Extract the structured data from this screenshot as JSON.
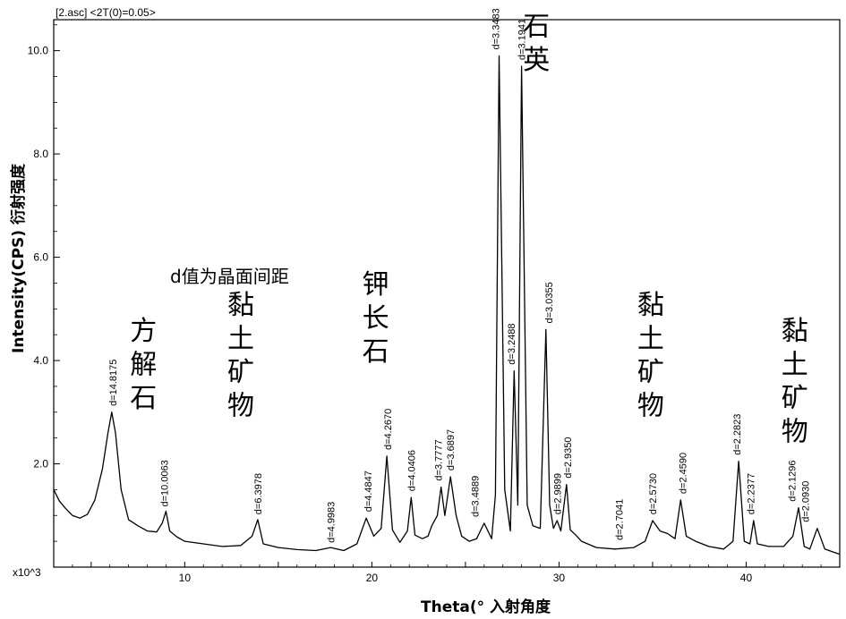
{
  "header": "[2.asc] <2T(0)=0.05>",
  "chart_data": {
    "type": "line",
    "xlabel": "Theta(°  入射角度",
    "ylabel": "Intensity(CPS) 衍射强度",
    "y_unit": "x10^3",
    "xlim": [
      3,
      45
    ],
    "ylim": [
      0,
      10.6
    ],
    "x_ticks": [
      "10",
      "20",
      "30",
      "40"
    ],
    "y_ticks": [
      "2.0",
      "4.0",
      "6.0",
      "8.0",
      "10.0"
    ],
    "note": "d值为晶面间距",
    "series": [
      {
        "x": [
          3.0,
          3.3,
          3.6,
          4.0,
          4.4,
          4.8,
          5.2,
          5.6,
          5.9,
          6.1,
          6.3,
          6.6,
          7.0,
          7.5,
          8.0,
          8.5,
          8.8,
          9.0,
          9.2,
          9.6,
          10.0,
          11.0,
          12.0,
          13.0,
          13.6,
          13.9,
          14.2,
          15.0,
          16.0,
          17.0,
          17.8,
          18.5,
          19.2,
          19.7,
          20.1,
          20.5,
          20.8,
          21.1,
          21.5,
          21.9,
          22.1,
          22.3,
          22.7,
          23.0,
          23.2,
          23.5,
          23.7,
          23.9,
          24.2,
          24.5,
          24.8,
          25.2,
          25.6,
          26.0,
          26.4,
          26.6,
          26.8,
          27.1,
          27.4,
          27.6,
          27.8,
          28.0,
          28.3,
          28.6,
          29.0,
          29.3,
          29.5,
          29.7,
          29.9,
          30.1,
          30.4,
          30.6,
          30.9,
          31.2,
          32.0,
          33.0,
          34.0,
          34.6,
          35.0,
          35.4,
          35.8,
          36.2,
          36.5,
          36.8,
          37.3,
          38.0,
          38.8,
          39.3,
          39.6,
          39.9,
          40.2,
          40.4,
          40.6,
          41.2,
          42.0,
          42.5,
          42.8,
          43.1,
          43.4,
          43.8,
          44.2,
          44.6,
          45.0
        ],
        "y": [
          1.5,
          1.28,
          1.15,
          1.0,
          0.95,
          1.02,
          1.3,
          1.9,
          2.6,
          3.0,
          2.6,
          1.5,
          0.92,
          0.8,
          0.7,
          0.68,
          0.85,
          1.08,
          0.7,
          0.58,
          0.5,
          0.45,
          0.4,
          0.42,
          0.6,
          0.92,
          0.45,
          0.38,
          0.34,
          0.32,
          0.38,
          0.32,
          0.45,
          0.95,
          0.6,
          0.75,
          2.15,
          0.72,
          0.48,
          0.7,
          1.35,
          0.62,
          0.55,
          0.6,
          0.8,
          1.0,
          1.55,
          1.0,
          1.75,
          1.0,
          0.6,
          0.5,
          0.55,
          0.85,
          0.55,
          1.4,
          9.9,
          1.5,
          0.7,
          3.8,
          1.2,
          9.7,
          1.2,
          0.8,
          0.75,
          4.6,
          1.2,
          0.75,
          0.9,
          0.7,
          1.6,
          0.72,
          0.62,
          0.5,
          0.38,
          0.35,
          0.38,
          0.5,
          0.9,
          0.7,
          0.65,
          0.55,
          1.3,
          0.6,
          0.5,
          0.4,
          0.35,
          0.5,
          2.05,
          0.5,
          0.45,
          0.9,
          0.45,
          0.4,
          0.4,
          0.6,
          1.15,
          0.4,
          0.35,
          0.75,
          0.35,
          0.3,
          0.25
        ]
      }
    ],
    "peak_labels": [
      {
        "text": "d=14.8175",
        "x": 6.15,
        "y": 3.05
      },
      {
        "text": "d=10.0063",
        "x": 8.9,
        "y": 1.1
      },
      {
        "text": "d=6.3978",
        "x": 13.9,
        "y": 0.95
      },
      {
        "text": "d=4.9983",
        "x": 17.8,
        "y": 0.4
      },
      {
        "text": "d=4.4847",
        "x": 19.8,
        "y": 1.0
      },
      {
        "text": "d=4.2670",
        "x": 20.85,
        "y": 2.2
      },
      {
        "text": "d=4.0406",
        "x": 22.1,
        "y": 1.4
      },
      {
        "text": "d=3.7777",
        "x": 23.55,
        "y": 1.6
      },
      {
        "text": "d=3.6897",
        "x": 24.2,
        "y": 1.8
      },
      {
        "text": "d=3.4889",
        "x": 25.5,
        "y": 0.9
      },
      {
        "text": "d=3.3483",
        "x": 26.6,
        "y": 9.95
      },
      {
        "text": "d=3.2488",
        "x": 27.45,
        "y": 3.85
      },
      {
        "text": "d=3.1941",
        "x": 28.0,
        "y": 9.75
      },
      {
        "text": "d=3.0355",
        "x": 29.45,
        "y": 4.65
      },
      {
        "text": "d=2.9899",
        "x": 29.9,
        "y": 0.95
      },
      {
        "text": "d=2.9350",
        "x": 30.45,
        "y": 1.65
      },
      {
        "text": "d=2.7041",
        "x": 33.2,
        "y": 0.45
      },
      {
        "text": "d=2.5730",
        "x": 35.0,
        "y": 0.95
      },
      {
        "text": "d=2.4590",
        "x": 36.6,
        "y": 1.35
      },
      {
        "text": "d=2.2823",
        "x": 39.5,
        "y": 2.1
      },
      {
        "text": "d=2.2377",
        "x": 40.25,
        "y": 0.95
      },
      {
        "text": "d=2.1296",
        "x": 42.45,
        "y": 1.2
      },
      {
        "text": "d=2.0930",
        "x": 43.15,
        "y": 0.8
      }
    ],
    "annotations": [
      {
        "text": "方解石",
        "x": 7.8,
        "y": 4.4
      },
      {
        "text": "黏土矿物",
        "x": 13.0,
        "y": 4.9
      },
      {
        "text": "钾长石",
        "x": 20.2,
        "y": 5.3
      },
      {
        "text": "石英",
        "x": 28.8,
        "y": 10.3
      },
      {
        "text": "黏土矿物",
        "x": 34.9,
        "y": 4.9
      },
      {
        "text": "黏土矿物",
        "x": 42.6,
        "y": 4.4
      }
    ]
  }
}
